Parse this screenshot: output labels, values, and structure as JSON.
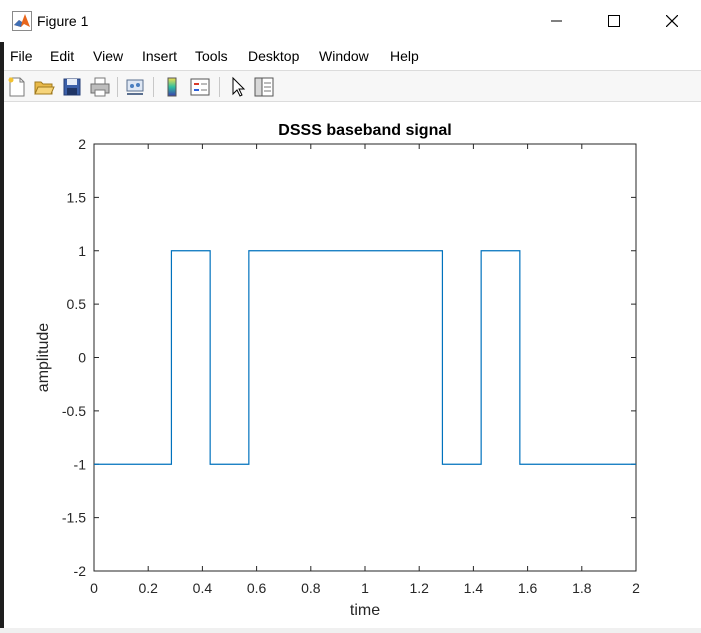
{
  "window": {
    "title": "Figure 1",
    "controls": [
      "minimize",
      "maximize",
      "close"
    ]
  },
  "menu": {
    "items": [
      "File",
      "Edit",
      "View",
      "Insert",
      "Tools",
      "Desktop",
      "Window",
      "Help"
    ]
  },
  "toolbar": {
    "buttons": [
      "new-figure-icon",
      "open-file-icon",
      "save-icon",
      "print-icon",
      "link-plot-icon",
      "insert-colorbar-icon",
      "insert-legend-icon",
      "edit-plot-icon",
      "property-inspector-icon"
    ]
  },
  "colors": {
    "line": "#0072bd",
    "axes": "#262626",
    "grid_background": "#ffffff"
  },
  "chart_data": {
    "type": "line",
    "title": "DSSS baseband signal",
    "xlabel": "time",
    "ylabel": "amplitude",
    "xlim": [
      0,
      2
    ],
    "ylim": [
      -2,
      2
    ],
    "xticks": [
      0,
      0.2,
      0.4,
      0.6,
      0.8,
      1,
      1.2,
      1.4,
      1.6,
      1.8,
      2
    ],
    "xtick_labels": [
      "0",
      "0.2",
      "0.4",
      "0.6",
      "0.8",
      "1",
      "1.2",
      "1.4",
      "1.6",
      "1.8",
      "2"
    ],
    "yticks": [
      -2,
      -1.5,
      -1,
      -0.5,
      0,
      0.5,
      1,
      1.5,
      2
    ],
    "ytick_labels": [
      "-2",
      "-1.5",
      "-1",
      "-0.5",
      "0",
      "0.5",
      "1",
      "1.5",
      "2"
    ],
    "grid": false,
    "series": [
      {
        "x": [
          0,
          0.2857,
          0.2857,
          0.4286,
          0.4286,
          0.5714,
          0.5714,
          1.2857,
          1.2857,
          1.4286,
          1.4286,
          1.5714,
          1.5714,
          2
        ],
        "y": [
          -1,
          -1,
          1,
          1,
          -1,
          -1,
          1,
          1,
          -1,
          -1,
          1,
          1,
          -1,
          -1
        ]
      }
    ]
  }
}
